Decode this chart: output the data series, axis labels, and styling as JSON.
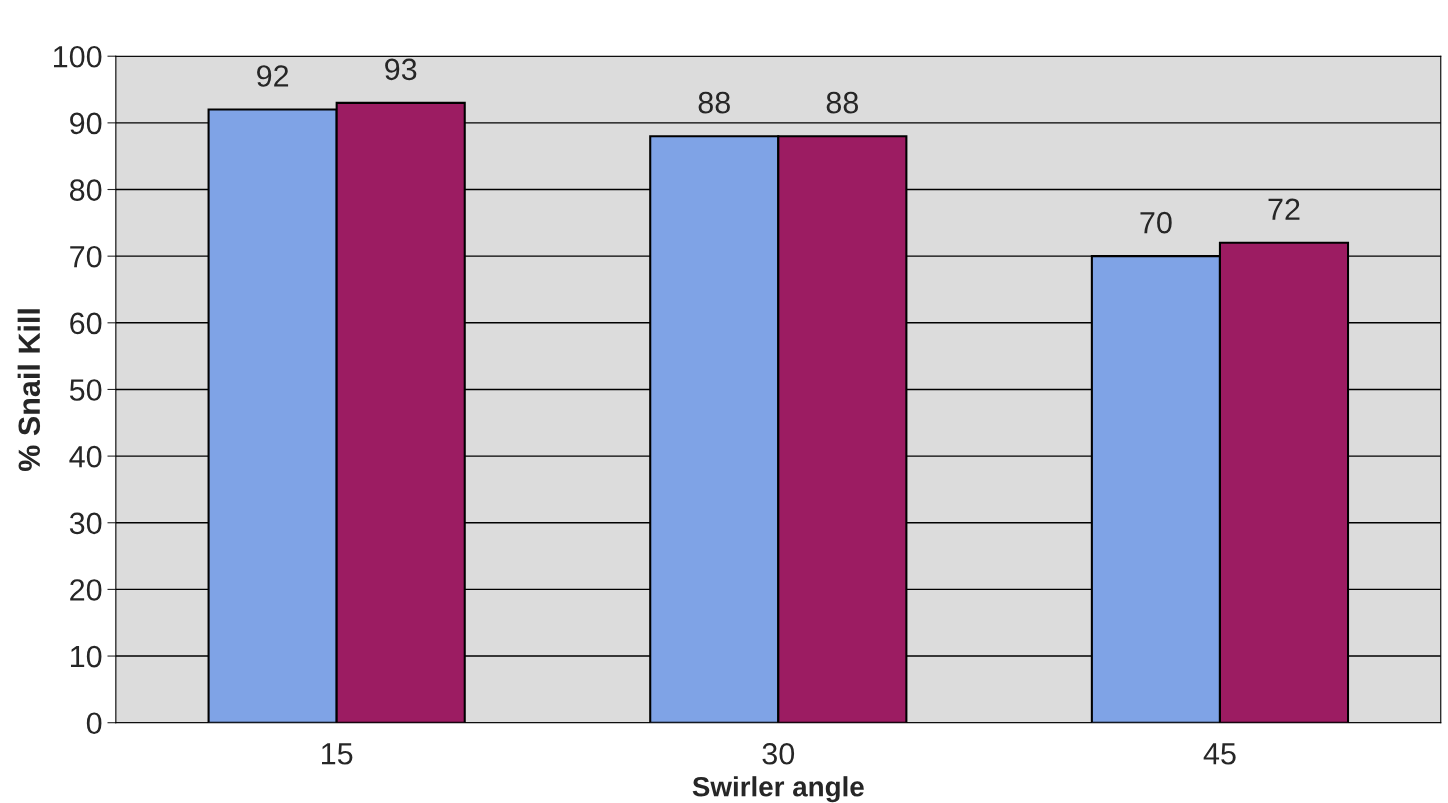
{
  "chart_data": {
    "type": "bar",
    "xlabel": "Swirler angle",
    "ylabel": "% Snail Kill",
    "categories": [
      "15",
      "30",
      "45"
    ],
    "series": [
      {
        "color": "#7fa3e6",
        "values": [
          92,
          88,
          70
        ]
      },
      {
        "color": "#9c1c62",
        "values": [
          93,
          88,
          72
        ]
      }
    ],
    "ylim": [
      0,
      100
    ],
    "yticks": [
      0,
      10,
      20,
      30,
      40,
      50,
      60,
      70,
      80,
      90,
      100
    ],
    "grid": "y",
    "data_labels": true
  }
}
